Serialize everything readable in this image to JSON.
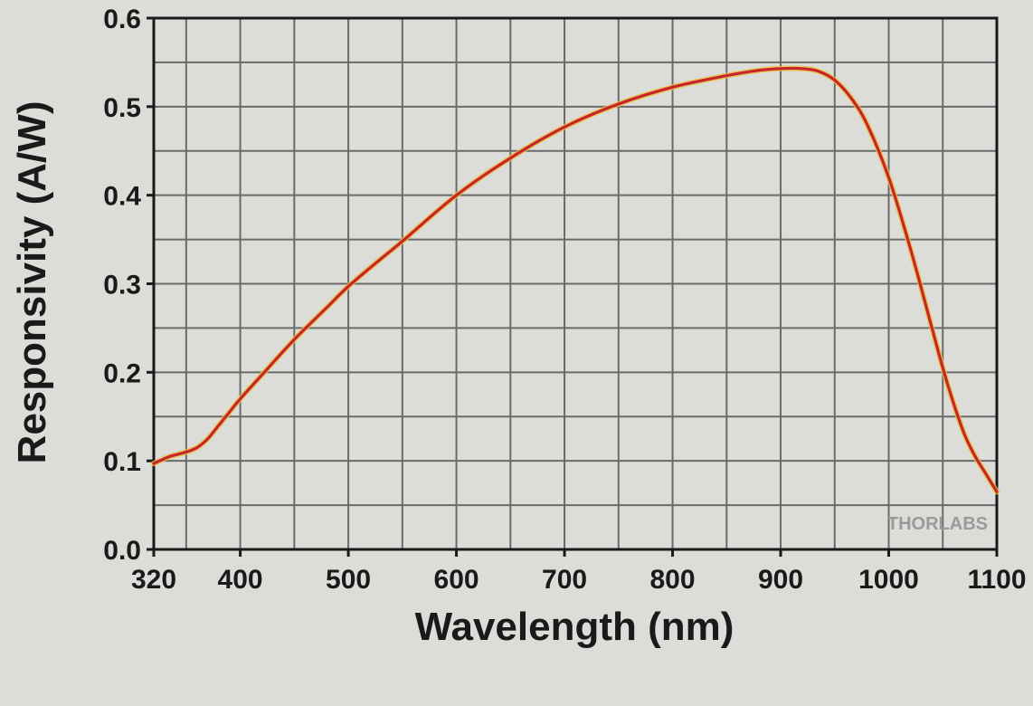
{
  "chart_data": {
    "type": "line",
    "title": "",
    "xlabel": "Wavelength (nm)",
    "ylabel": "Responsivity (A/W)",
    "xlim": [
      320,
      1100
    ],
    "ylim": [
      0.0,
      0.6
    ],
    "x_ticks": [
      320,
      400,
      500,
      600,
      700,
      800,
      900,
      1000,
      1100
    ],
    "x_tick_labels": [
      "320",
      "400",
      "500",
      "600",
      "700",
      "800",
      "900",
      "1000",
      "1100"
    ],
    "y_ticks": [
      0.0,
      0.1,
      0.2,
      0.3,
      0.4,
      0.5,
      0.6
    ],
    "y_tick_labels": [
      "0.0",
      "0.1",
      "0.2",
      "0.3",
      "0.4",
      "0.5",
      "0.6"
    ],
    "x_minor_step": 50,
    "y_minor_step": 0.05,
    "grid": true,
    "legend": "none",
    "watermark": "THORLABS",
    "colors": {
      "line": "#c8242b",
      "line_glow": "#e8c23a",
      "grid": "#6a6a6a",
      "axis": "#1a1a1a",
      "background": "#dcdcd8"
    },
    "series": [
      {
        "name": "Responsivity",
        "x": [
          320,
          335,
          350,
          360,
          370,
          380,
          390,
          400,
          420,
          450,
          480,
          500,
          530,
          550,
          600,
          650,
          700,
          750,
          800,
          850,
          880,
          900,
          920,
          935,
          950,
          965,
          980,
          1000,
          1020,
          1040,
          1050,
          1060,
          1070,
          1080,
          1090,
          1100
        ],
        "values": [
          0.097,
          0.105,
          0.11,
          0.115,
          0.125,
          0.14,
          0.155,
          0.17,
          0.197,
          0.237,
          0.273,
          0.297,
          0.328,
          0.348,
          0.4,
          0.442,
          0.477,
          0.503,
          0.522,
          0.535,
          0.541,
          0.543,
          0.543,
          0.54,
          0.53,
          0.51,
          0.48,
          0.42,
          0.34,
          0.25,
          0.205,
          0.165,
          0.13,
          0.105,
          0.085,
          0.065
        ]
      }
    ]
  }
}
